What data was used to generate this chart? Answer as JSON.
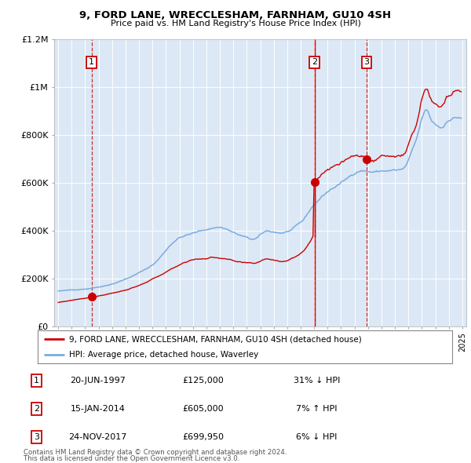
{
  "title": "9, FORD LANE, WRECCLESHAM, FARNHAM, GU10 4SH",
  "subtitle": "Price paid vs. HM Land Registry's House Price Index (HPI)",
  "transactions": [
    {
      "num": 1,
      "date_str": "20-JUN-1997",
      "year": 1997.47,
      "price": 125000,
      "pct": "31%",
      "dir": "↓"
    },
    {
      "num": 2,
      "date_str": "15-JAN-2014",
      "year": 2014.04,
      "price": 605000,
      "pct": "7%",
      "dir": "↑"
    },
    {
      "num": 3,
      "date_str": "24-NOV-2017",
      "year": 2017.9,
      "price": 699950,
      "pct": "6%",
      "dir": "↓"
    }
  ],
  "legend_line1": "9, FORD LANE, WRECCLESHAM, FARNHAM, GU10 4SH (detached house)",
  "legend_line2": "HPI: Average price, detached house, Waverley",
  "footer1": "Contains HM Land Registry data © Crown copyright and database right 2024.",
  "footer2": "This data is licensed under the Open Government Licence v3.0.",
  "red_color": "#cc0000",
  "blue_color": "#7aabe0",
  "plot_bg": "#dce8f5",
  "ylim": [
    0,
    1200000
  ],
  "xlim_start": 1994.7,
  "xlim_end": 2025.3,
  "yticks": [
    0,
    200000,
    400000,
    600000,
    800000,
    1000000,
    1200000
  ],
  "ylabels": [
    "£0",
    "£200K",
    "£400K",
    "£600K",
    "£800K",
    "£1M",
    "£1.2M"
  ]
}
